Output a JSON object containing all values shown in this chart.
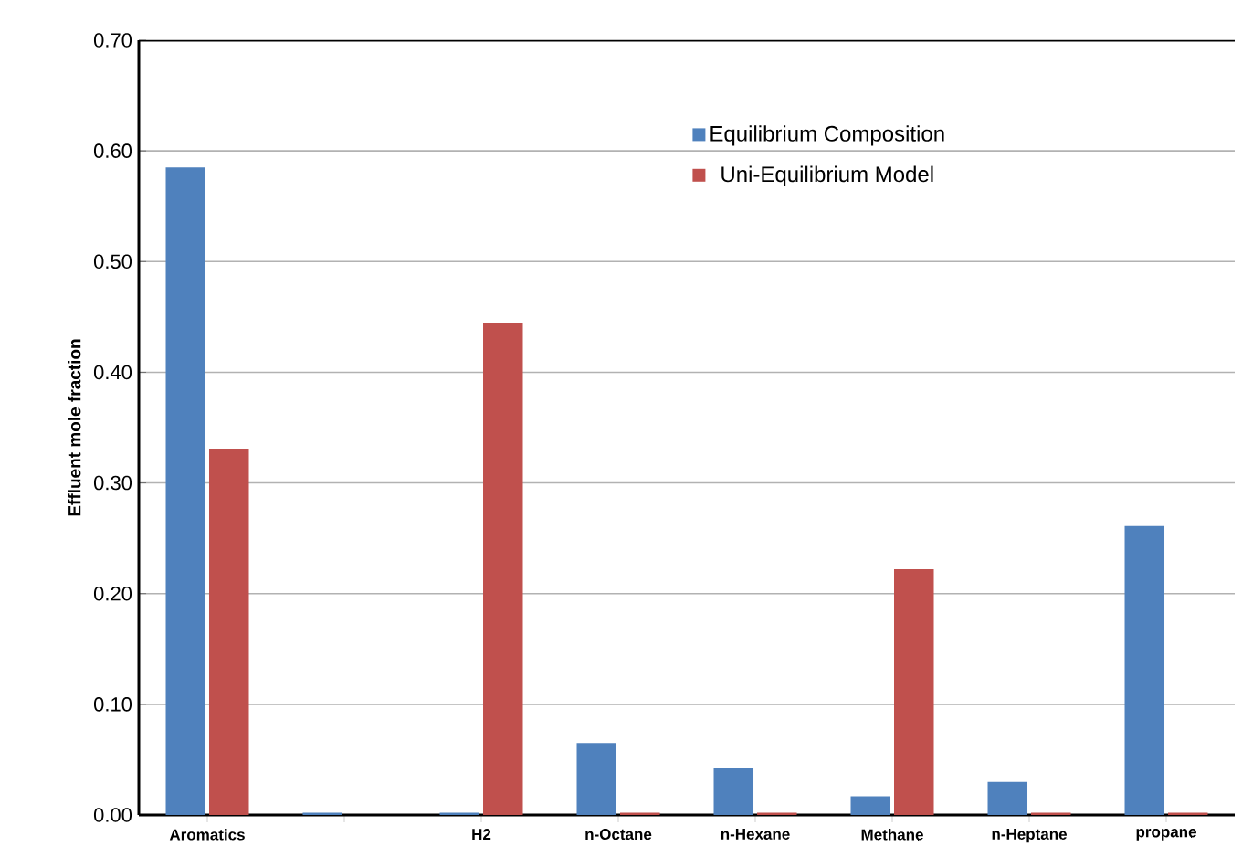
{
  "chart_data": {
    "type": "bar",
    "ylabel": "Effluent mole fraction",
    "categories": [
      "Aromatics",
      null,
      "H2",
      "n-Octane",
      "n-Hexane",
      "Methane",
      "n-Heptane",
      "propane"
    ],
    "series": [
      {
        "name": "Equilibrium Composition",
        "color": "#4f81bd",
        "values": [
          0.585,
          0.002,
          0.002,
          0.065,
          0.042,
          0.017,
          0.03,
          0.261
        ]
      },
      {
        "name": "Uni-Equilibrium Model",
        "color": "#c0504d",
        "values": [
          0.331,
          0.0,
          0.445,
          0.002,
          0.002,
          0.222,
          0.002,
          0.002
        ]
      }
    ],
    "ylim": [
      0,
      0.7
    ],
    "yticks": [
      {
        "value": 0,
        "label": "0.00"
      },
      {
        "value": 0.1,
        "label": "0.10"
      },
      {
        "value": 0.2,
        "label": "0.20"
      },
      {
        "value": 0.3,
        "label": "0.30"
      },
      {
        "value": 0.4,
        "label": "0.40"
      },
      {
        "value": 0.5,
        "label": "0.50"
      },
      {
        "value": 0.6,
        "label": "0.60"
      },
      {
        "value": 0.7,
        "label": "0.70"
      }
    ],
    "grid": "y",
    "legend": "top right"
  }
}
